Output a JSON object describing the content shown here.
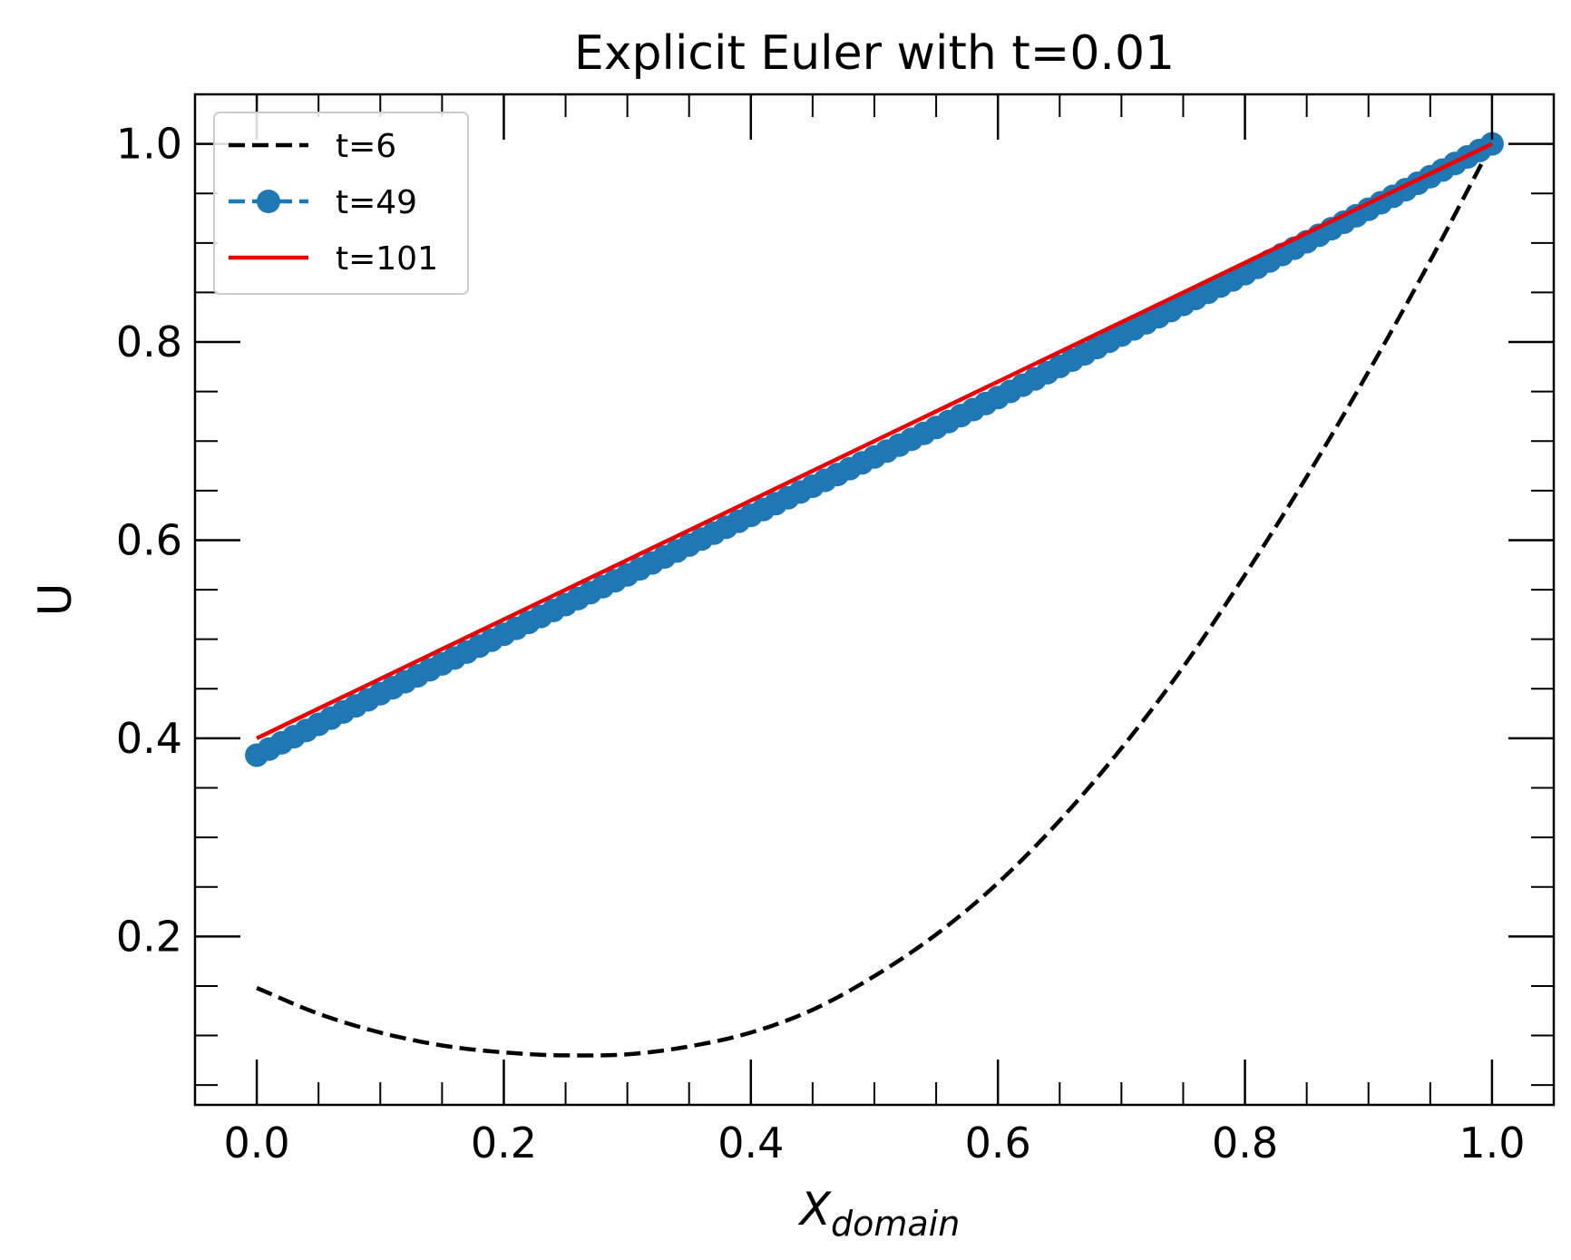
{
  "chart_data": {
    "type": "line",
    "title": "Explicit Euler with t=0.01",
    "xlabel_main": "X",
    "xlabel_sub": "domain",
    "ylabel": "U",
    "xlim": [
      -0.05,
      1.05
    ],
    "ylim": [
      0.03,
      1.05
    ],
    "xticks": [
      0.0,
      0.2,
      0.4,
      0.6,
      0.8,
      1.0
    ],
    "xtick_labels": [
      "0.0",
      "0.2",
      "0.4",
      "0.6",
      "0.8",
      "1.0"
    ],
    "yticks": [
      0.2,
      0.4,
      0.6,
      0.8,
      1.0
    ],
    "ytick_labels": [
      "0.2",
      "0.4",
      "0.6",
      "0.8",
      "1.0"
    ],
    "x_minor_step": 0.05,
    "y_minor_step": 0.05,
    "grid": false,
    "legend_position": "top-left",
    "series": [
      {
        "name": "t=6",
        "style": "dashed",
        "color": "#000000",
        "x": [
          0.0,
          0.05,
          0.1,
          0.15,
          0.2,
          0.25,
          0.3,
          0.35,
          0.4,
          0.45,
          0.5,
          0.55,
          0.6,
          0.65,
          0.7,
          0.75,
          0.8,
          0.85,
          0.9,
          0.95,
          1.0
        ],
        "y": [
          0.148,
          0.122,
          0.103,
          0.09,
          0.083,
          0.08,
          0.081,
          0.089,
          0.103,
          0.126,
          0.16,
          0.202,
          0.254,
          0.317,
          0.39,
          0.472,
          0.565,
          0.664,
          0.77,
          0.882,
          1.0
        ]
      },
      {
        "name": "t=49",
        "style": "dashed-markers",
        "color": "#1f77b4",
        "x_start": 0.0,
        "x_end": 1.0,
        "points": 101,
        "x": [
          0.0,
          0.1,
          0.2,
          0.3,
          0.4,
          0.5,
          0.6,
          0.7,
          0.8,
          0.9,
          1.0
        ],
        "y": [
          0.383,
          0.445,
          0.505,
          0.565,
          0.625,
          0.684,
          0.744,
          0.807,
          0.869,
          0.934,
          1.0
        ]
      },
      {
        "name": "t=101",
        "style": "solid",
        "color": "#ee0000",
        "x": [
          0.0,
          1.0
        ],
        "y": [
          0.4,
          1.0
        ]
      }
    ]
  }
}
